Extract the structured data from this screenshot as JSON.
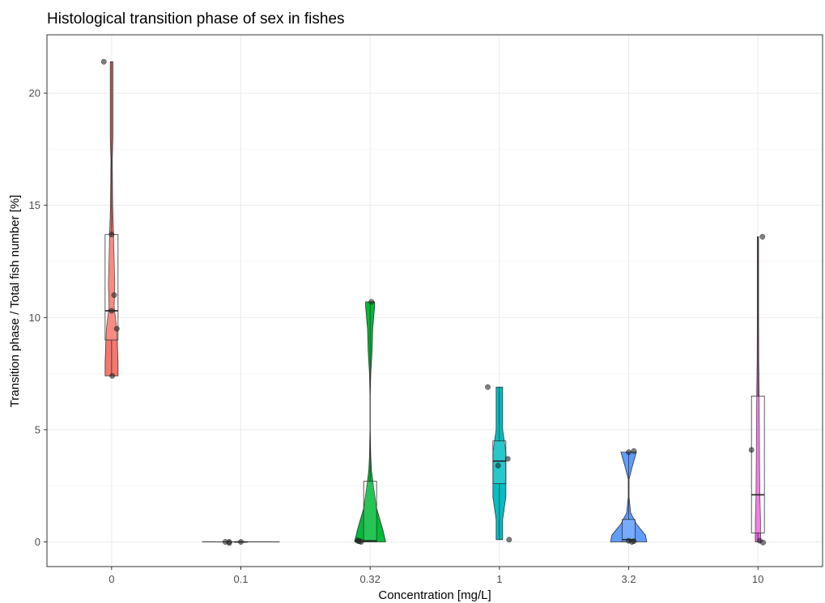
{
  "chart_data": {
    "type": "violin",
    "title": "Histological transition phase of sex in fishes",
    "xlabel": "Concentration [mg/L]",
    "ylabel": "Transition phase / Total fish number [%]",
    "categories": [
      "0",
      "0.1",
      "0.32",
      "1",
      "3.2",
      "10"
    ],
    "ylim": [
      -1.1,
      22.6
    ],
    "yticks": [
      0,
      5,
      10,
      15,
      20
    ],
    "grid": true,
    "legend": "none",
    "colors": [
      "#F8766D",
      "#B79F00",
      "#00BA38",
      "#00BFC4",
      "#619CFF",
      "#F564E3"
    ],
    "groups": [
      {
        "category": "0",
        "fill": "#F8766D",
        "box": {
          "min": 7.4,
          "q1": 9.0,
          "median": 10.3,
          "q3": 13.7,
          "max": 21.4
        },
        "points": [
          21.4,
          13.7,
          11.0,
          10.3,
          9.5,
          7.4
        ],
        "jitter": [
          -0.06,
          0.0,
          0.02,
          0.0,
          0.04,
          0.005
        ],
        "density": [
          [
            7.4,
            0.05
          ],
          [
            8.0,
            0.05
          ],
          [
            8.8,
            0.045
          ],
          [
            9.5,
            0.04
          ],
          [
            10.5,
            0.02
          ],
          [
            11.5,
            0.025
          ],
          [
            12.5,
            0.02
          ],
          [
            13.7,
            0.015
          ],
          [
            15,
            0.008
          ],
          [
            17,
            0.005
          ],
          [
            18,
            0.01
          ],
          [
            20,
            0.01
          ],
          [
            21.4,
            0.01
          ]
        ]
      },
      {
        "category": "0.1",
        "fill": "#B79F00",
        "box": {
          "min": 0,
          "q1": 0,
          "median": 0,
          "q3": 0,
          "max": 0
        },
        "points": [
          0,
          0,
          -0.05,
          0
        ],
        "jitter": [
          -0.12,
          -0.09,
          -0.09,
          0.0
        ],
        "density": [
          [
            0,
            0.3
          ]
        ]
      },
      {
        "category": "0.32",
        "fill": "#00BA38",
        "box": {
          "min": 0,
          "q1": 0,
          "median": 0.05,
          "q3": 2.7,
          "max": 10.7
        },
        "points": [
          0.07,
          0.03,
          0.03,
          0.0,
          10.7
        ],
        "jitter": [
          -0.1,
          -0.09,
          -0.08,
          -0.07,
          0.01
        ],
        "density": [
          [
            0,
            0.12
          ],
          [
            0.5,
            0.1
          ],
          [
            1.5,
            0.05
          ],
          [
            2.5,
            0.025
          ],
          [
            3.2,
            0.01
          ],
          [
            3.8,
            0.005
          ],
          [
            5,
            0.001
          ],
          [
            6.5,
            0.001
          ],
          [
            7.5,
            0.005
          ],
          [
            8.5,
            0.015
          ],
          [
            9.5,
            0.02
          ],
          [
            10.5,
            0.035
          ],
          [
            10.7,
            0.035
          ]
        ]
      },
      {
        "category": "1",
        "fill": "#00BFC4",
        "box": {
          "min": 0.1,
          "q1": 2.6,
          "median": 3.6,
          "q3": 4.5,
          "max": 6.9
        },
        "points": [
          6.9,
          3.7,
          3.4,
          0.1
        ],
        "jitter": [
          -0.09,
          0.065,
          -0.01,
          0.075
        ],
        "density": [
          [
            0.1,
            0.025
          ],
          [
            1,
            0.025
          ],
          [
            2,
            0.05
          ],
          [
            3,
            0.05
          ],
          [
            4,
            0.05
          ],
          [
            5,
            0.025
          ],
          [
            6,
            0.025
          ],
          [
            6.9,
            0.025
          ]
        ]
      },
      {
        "category": "3.2",
        "fill": "#619CFF",
        "box": {
          "min": 0,
          "q1": 0,
          "median": 0.1,
          "q3": 1.0,
          "max": 4.0
        },
        "points": [
          4.0,
          4.05,
          0.05,
          0.0,
          0.03
        ],
        "jitter": [
          0.0,
          0.04,
          0.0,
          0.025,
          0.04
        ],
        "density": [
          [
            0,
            0.14
          ],
          [
            0.3,
            0.13
          ],
          [
            0.8,
            0.06
          ],
          [
            1.3,
            0.015
          ],
          [
            2,
            0.003
          ],
          [
            2.8,
            0.003
          ],
          [
            3.4,
            0.03
          ],
          [
            4.0,
            0.06
          ]
        ]
      },
      {
        "category": "10",
        "fill": "#F564E3",
        "box": {
          "min": 0,
          "q1": 0.4,
          "median": 2.1,
          "q3": 6.5,
          "max": 13.6
        },
        "points": [
          13.6,
          4.1,
          0.05,
          -0.03
        ],
        "jitter": [
          0.035,
          -0.05,
          0.015,
          0.04
        ],
        "density": [
          [
            0,
            0.02
          ],
          [
            1,
            0.02
          ],
          [
            2,
            0.015
          ],
          [
            4,
            0.012
          ],
          [
            6,
            0.01
          ],
          [
            8,
            0.006
          ],
          [
            10,
            0.005
          ],
          [
            12,
            0.005
          ],
          [
            13.6,
            0.005
          ]
        ]
      }
    ]
  }
}
